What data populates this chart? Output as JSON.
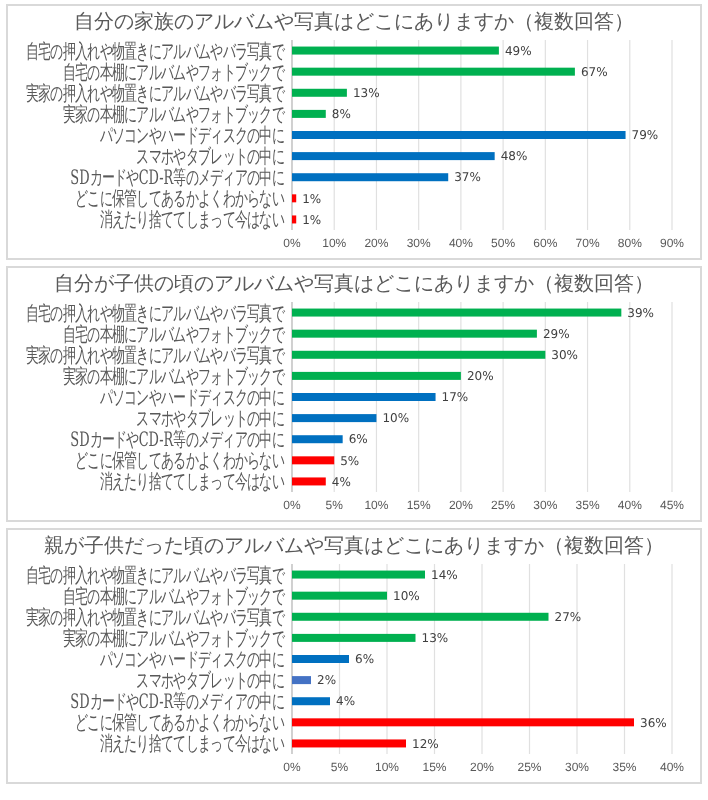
{
  "chart_data": [
    {
      "type": "bar",
      "orientation": "horizontal",
      "title": "自分の家族のアルバムや写真はどこにありますか（複数回答）",
      "categories": [
        "自宅の押入れや物置きにアルバムやバラ写真で",
        "自宅の本棚にアルバムやフォトブックで",
        "実家の押入れや物置きにアルバムやバラ写真で",
        "実家の本棚にアルバムやフォトブックで",
        "パソコンやハードディスクの中に",
        "スマホやタブレットの中に",
        "SDカードやCD-R等のメディアの中に",
        "どこに保管してあるかよくわからない",
        "消えたり捨ててしまって今はない"
      ],
      "values": [
        49,
        67,
        13,
        8,
        79,
        48,
        37,
        1,
        1
      ],
      "colors": [
        "#00b050",
        "#00b050",
        "#00b050",
        "#00b050",
        "#0070c0",
        "#0070c0",
        "#0070c0",
        "#ff0000",
        "#ff0000"
      ],
      "value_labels": [
        "49%",
        "67%",
        "13%",
        "8%",
        "79%",
        "48%",
        "37%",
        "1%",
        "1%"
      ],
      "xlim": [
        0,
        90
      ],
      "xticks": [
        {
          "value": 0,
          "label": "0%"
        },
        {
          "value": 10,
          "label": "10%"
        },
        {
          "value": 20,
          "label": "20%"
        },
        {
          "value": 30,
          "label": "30%"
        },
        {
          "value": 40,
          "label": "40%"
        },
        {
          "value": 50,
          "label": "50%"
        },
        {
          "value": 60,
          "label": "60%"
        },
        {
          "value": 70,
          "label": "70%"
        },
        {
          "value": 80,
          "label": "80%"
        },
        {
          "value": 90,
          "label": "90%"
        }
      ],
      "grid": "x"
    },
    {
      "type": "bar",
      "orientation": "horizontal",
      "title": "自分が子供の頃のアルバムや写真はどこにありますか（複数回答）",
      "categories": [
        "自宅の押入れや物置きにアルバムやバラ写真で",
        "自宅の本棚にアルバムやフォトブックで",
        "実家の押入れや物置きにアルバムやバラ写真で",
        "実家の本棚にアルバムやフォトブックで",
        "パソコンやハードディスクの中に",
        "スマホやタブレットの中に",
        "SDカードやCD-R等のメディアの中に",
        "どこに保管してあるかよくわからない",
        "消えたり捨ててしまって今はない"
      ],
      "values": [
        39,
        29,
        30,
        20,
        17,
        10,
        6,
        5,
        4
      ],
      "colors": [
        "#00b050",
        "#00b050",
        "#00b050",
        "#00b050",
        "#0070c0",
        "#0070c0",
        "#0070c0",
        "#ff0000",
        "#ff0000"
      ],
      "value_labels": [
        "39%",
        "29%",
        "30%",
        "20%",
        "17%",
        "10%",
        "6%",
        "5%",
        "4%"
      ],
      "xlim": [
        0,
        45
      ],
      "xticks": [
        {
          "value": 0,
          "label": "0%"
        },
        {
          "value": 5,
          "label": "5%"
        },
        {
          "value": 10,
          "label": "10%"
        },
        {
          "value": 15,
          "label": "15%"
        },
        {
          "value": 20,
          "label": "20%"
        },
        {
          "value": 25,
          "label": "25%"
        },
        {
          "value": 30,
          "label": "30%"
        },
        {
          "value": 35,
          "label": "35%"
        },
        {
          "value": 40,
          "label": "40%"
        },
        {
          "value": 45,
          "label": "45%"
        }
      ],
      "grid": "x"
    },
    {
      "type": "bar",
      "orientation": "horizontal",
      "title": "親が子供だった頃のアルバムや写真はどこにありますか（複数回答）",
      "categories": [
        "自宅の押入れや物置きにアルバムやバラ写真で",
        "自宅の本棚にアルバムやフォトブックで",
        "実家の押入れや物置きにアルバムやバラ写真で",
        "実家の本棚にアルバムやフォトブックで",
        "パソコンやハードディスクの中に",
        "スマホやタブレットの中に",
        "SDカードやCD-R等のメディアの中に",
        "どこに保管してあるかよくわからない",
        "消えたり捨ててしまって今はない"
      ],
      "values": [
        14,
        10,
        27,
        13,
        6,
        2,
        4,
        36,
        12
      ],
      "colors": [
        "#00b050",
        "#00b050",
        "#00b050",
        "#00b050",
        "#0070c0",
        "#4472c4",
        "#0070c0",
        "#ff0000",
        "#ff0000"
      ],
      "value_labels": [
        "14%",
        "10%",
        "27%",
        "13%",
        "6%",
        "2%",
        "4%",
        "36%",
        "12%"
      ],
      "xlim": [
        0,
        40
      ],
      "xticks": [
        {
          "value": 0,
          "label": "0%"
        },
        {
          "value": 5,
          "label": "5%"
        },
        {
          "value": 10,
          "label": "10%"
        },
        {
          "value": 15,
          "label": "15%"
        },
        {
          "value": 20,
          "label": "20%"
        },
        {
          "value": 25,
          "label": "25%"
        },
        {
          "value": 30,
          "label": "30%"
        },
        {
          "value": 35,
          "label": "35%"
        },
        {
          "value": 40,
          "label": "40%"
        }
      ],
      "grid": "x"
    }
  ]
}
